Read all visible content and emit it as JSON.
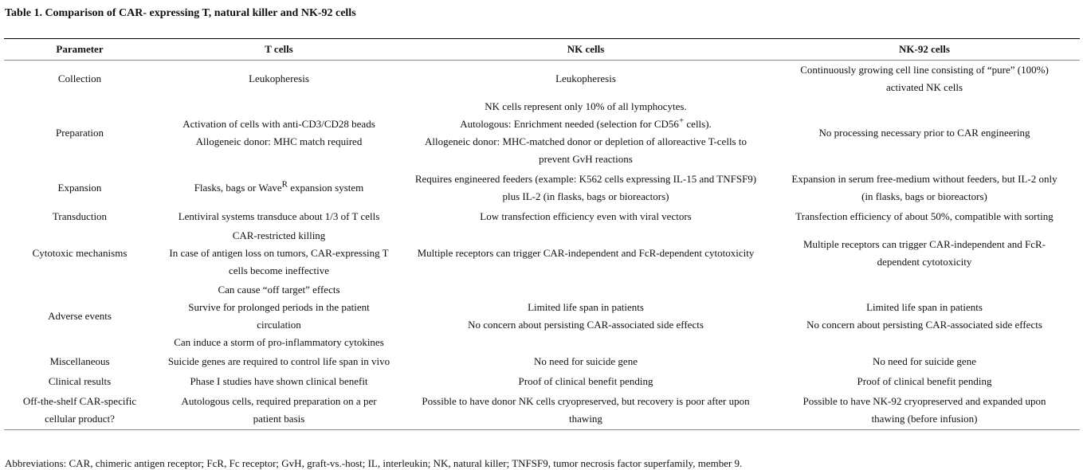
{
  "title": "Table 1. Comparison of CAR- expressing T, natural killer and NK-92 cells",
  "columns": [
    "Parameter",
    "T cells",
    "NK cells",
    "NK-92 cells"
  ],
  "rows": [
    {
      "parameter": [
        "Collection"
      ],
      "t_cells": [
        "Leukopheresis"
      ],
      "nk_cells": [
        "Leukopheresis"
      ],
      "nk92_cells": [
        "Continuously growing cell line consisting of “pure” (100%)",
        "activated NK cells"
      ]
    },
    {
      "parameter": [
        "Preparation"
      ],
      "t_cells": [
        "Activation of cells with anti-CD3/CD28 beads",
        "Allogeneic donor: MHC match required"
      ],
      "nk_cells": [
        "NK cells represent only 10% of all lymphocytes.",
        {
          "text": "Autologous: Enrichment needed (selection for CD56",
          "sup": "+",
          "after": " cells)."
        },
        "Allogeneic donor: MHC-matched donor or depletion of alloreactive T-cells to",
        "prevent GvH reactions"
      ],
      "nk92_cells": [
        "No processing necessary prior to CAR engineering"
      ]
    },
    {
      "parameter": [
        "Expansion"
      ],
      "t_cells": [
        {
          "text": "Flasks, bags or Wave",
          "sup": "R",
          "after": " expansion system"
        }
      ],
      "nk_cells": [
        "Requires engineered feeders (example: K562 cells expressing IL-15 and TNFSF9)",
        "plus IL-2 (in flasks, bags or bioreactors)"
      ],
      "nk92_cells": [
        "Expansion in serum free-medium without feeders, but IL-2 only",
        "(in flasks, bags or bioreactors)"
      ]
    },
    {
      "parameter": [
        "Transduction"
      ],
      "t_cells": [
        "Lentiviral systems transduce about 1/3 of T cells"
      ],
      "nk_cells": [
        "Low transfection efficiency even with viral vectors"
      ],
      "nk92_cells": [
        "Transfection efficiency of about 50%, compatible with sorting"
      ]
    },
    {
      "parameter": [
        "Cytotoxic mechanisms"
      ],
      "t_cells": [
        "CAR-restricted killing",
        "In case of antigen loss on tumors, CAR-expressing T",
        "cells become ineffective"
      ],
      "nk_cells": [
        "Multiple receptors can trigger CAR-independent and FcR-dependent cytotoxicity"
      ],
      "nk92_cells": [
        "Multiple receptors can trigger CAR-independent and FcR-",
        "dependent cytotoxicity"
      ]
    },
    {
      "parameter": [
        "Adverse events"
      ],
      "t_cells": [
        "Can cause “off target” effects",
        "Survive for prolonged periods in the patient",
        "circulation",
        "Can induce a storm of pro-inflammatory cytokines"
      ],
      "nk_cells": [
        "Limited life span in patients",
        "No concern about persisting CAR-associated side effects"
      ],
      "nk92_cells": [
        "Limited life span in patients",
        "No concern about persisting CAR-associated side effects"
      ]
    },
    {
      "parameter": [
        "Miscellaneous"
      ],
      "t_cells": [
        "Suicide genes are required to control life span in vivo"
      ],
      "nk_cells": [
        "No need for suicide gene"
      ],
      "nk92_cells": [
        "No need for suicide gene"
      ]
    },
    {
      "parameter": [
        "Clinical results"
      ],
      "t_cells": [
        "Phase I studies have shown clinical benefit"
      ],
      "nk_cells": [
        "Proof of clinical benefit pending"
      ],
      "nk92_cells": [
        "Proof of clinical benefit pending"
      ]
    },
    {
      "parameter": [
        "Off-the-shelf CAR-specific",
        "cellular product?"
      ],
      "t_cells": [
        "Autologous cells, required preparation on a per",
        "patient basis"
      ],
      "nk_cells": [
        "Possible to have donor NK cells cryopreserved, but recovery is poor after upon",
        "thawing"
      ],
      "nk92_cells": [
        "Possible to have NK-92 cryopreserved and expanded upon",
        "thawing (before infusion)"
      ]
    }
  ],
  "footnote": "Abbreviations: CAR, chimeric antigen receptor; FcR, Fc receptor; GvH, graft-vs.-host; IL, interleukin; NK, natural killer; TNFSF9, tumor necrosis factor superfamily, member 9."
}
